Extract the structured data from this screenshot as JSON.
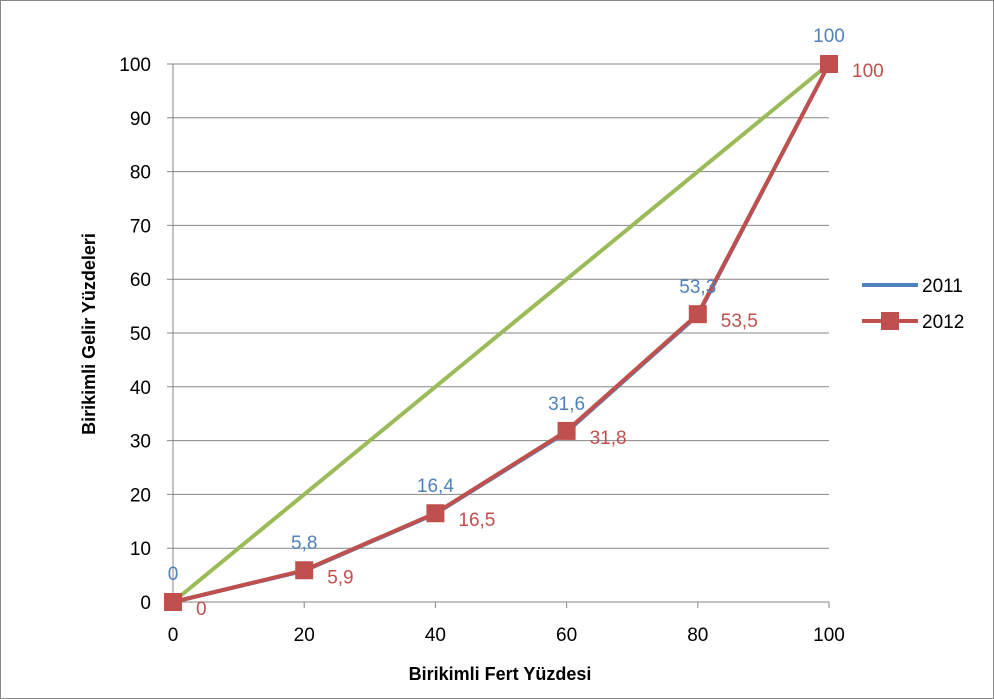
{
  "chart_data": {
    "type": "line",
    "title": "",
    "xlabel": "Birikimli Fert Yüzdesi",
    "ylabel": "Birikimli Gelir Yüzdeleri",
    "x": [
      0,
      20,
      40,
      60,
      80,
      100
    ],
    "x_ticks": [
      "0",
      "20",
      "40",
      "60",
      "80",
      "100"
    ],
    "y_ticks": [
      "0",
      "10",
      "20",
      "30",
      "40",
      "50",
      "60",
      "70",
      "80",
      "90",
      "100"
    ],
    "xlim": [
      0,
      100
    ],
    "ylim": [
      0,
      100
    ],
    "grid": "horizontal",
    "legend_position": "right",
    "series": [
      {
        "name": "2011",
        "values": [
          0,
          5.8,
          16.4,
          31.6,
          53.3,
          100
        ],
        "labels": [
          "0",
          "5,8",
          "16,4",
          "31,6",
          "53,3",
          "100"
        ],
        "color": "#4f81bd",
        "marker": "none",
        "label_position": "above"
      },
      {
        "name": "2012",
        "values": [
          0,
          5.9,
          16.5,
          31.8,
          53.5,
          100
        ],
        "labels": [
          "0",
          "5,9",
          "16,5",
          "31,8",
          "53,5",
          "100"
        ],
        "color": "#c0504d",
        "marker": "square",
        "label_position": "right"
      },
      {
        "values": [
          0,
          20,
          40,
          60,
          80,
          100
        ],
        "color": "#9bbb59",
        "marker": "none",
        "in_legend": false
      }
    ]
  }
}
